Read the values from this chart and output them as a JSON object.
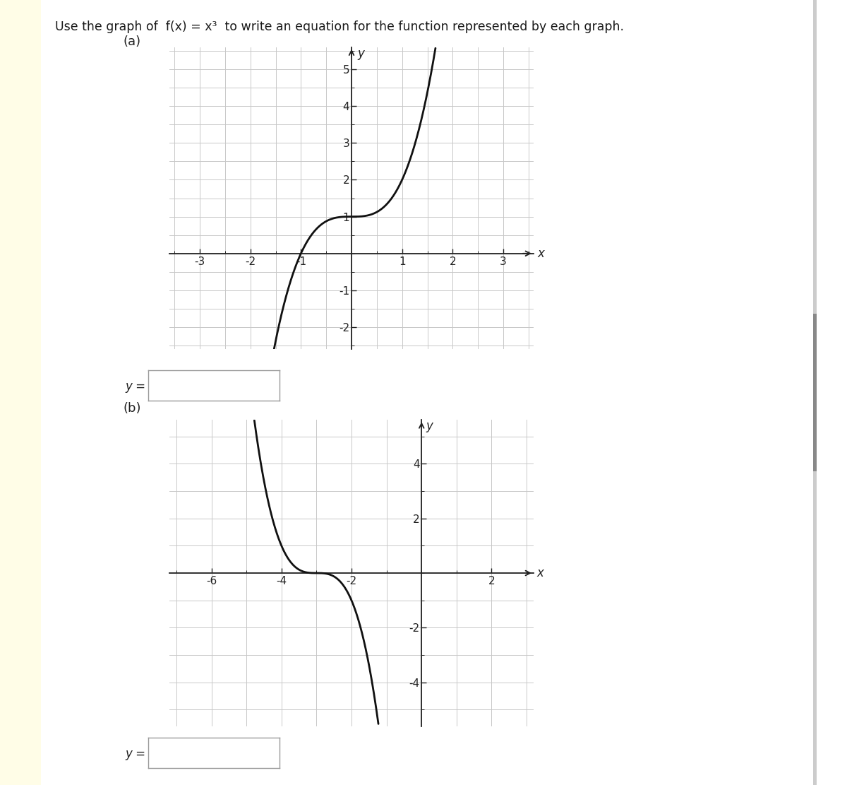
{
  "title_text": "Use the graph of  f(x) = x³  to write an equation for the function represented by each graph.",
  "label_a": "(a)",
  "label_b": "(b)",
  "page_bg": "#ffffff",
  "yellow_bg": "#fffde7",
  "curve_color": "#111111",
  "curve_lw": 2.0,
  "grid_color": "#c8c8c8",
  "axis_color": "#222222",
  "tick_color": "#222222",
  "ax_a": {
    "xlim": [
      -3.6,
      3.6
    ],
    "ylim": [
      -2.6,
      5.6
    ],
    "xticks": [
      -3,
      -2,
      -1,
      1,
      2,
      3
    ],
    "yticks": [
      -2,
      -1,
      1,
      2,
      3,
      4,
      5
    ],
    "xlabel": "x",
    "ylabel": "y",
    "x_range": [
      -1.62,
      1.77
    ],
    "minor_xticks": [
      -3.5,
      -3,
      -2.5,
      -2,
      -1.5,
      -1,
      -0.5,
      0,
      0.5,
      1,
      1.5,
      2,
      2.5,
      3,
      3.5
    ],
    "minor_yticks": [
      -2.5,
      -2,
      -1.5,
      -1,
      -0.5,
      0,
      0.5,
      1,
      1.5,
      2,
      2.5,
      3,
      3.5,
      4,
      4.5,
      5,
      5.5
    ]
  },
  "ax_b": {
    "xlim": [
      -7.2,
      3.2
    ],
    "ylim": [
      -5.6,
      5.6
    ],
    "xticks": [
      -6,
      -4,
      -2,
      2
    ],
    "yticks": [
      -4,
      -2,
      2,
      4
    ],
    "xlabel": "x",
    "ylabel": "y",
    "x_range": [
      -6.82,
      0.38
    ],
    "minor_xticks": [
      -7,
      -6,
      -5,
      -4,
      -3,
      -2,
      -1,
      0,
      1,
      2,
      3
    ],
    "minor_yticks": [
      -5,
      -4,
      -3,
      -2,
      -1,
      0,
      1,
      2,
      3,
      4,
      5
    ]
  }
}
